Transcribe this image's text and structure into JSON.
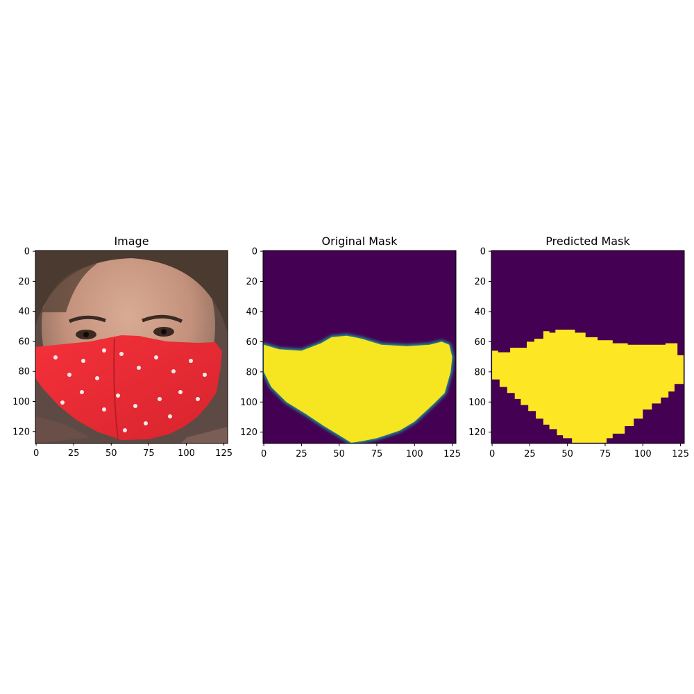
{
  "figure": {
    "background": "#ffffff"
  },
  "chart_data": [
    {
      "type": "heatmap",
      "title": "Image",
      "content": "rgb photo: face wearing red cloth mask with white heart pattern",
      "xlim": [
        0,
        127
      ],
      "ylim": [
        127,
        0
      ],
      "xticks": [
        0,
        25,
        50,
        75,
        100,
        125
      ],
      "yticks": [
        0,
        20,
        40,
        60,
        80,
        100,
        120
      ],
      "colors": {
        "mask": "#ee2b35",
        "skin": "#c99a85",
        "hair": "#4a3a30",
        "scarf": "#5e4a44"
      }
    },
    {
      "type": "heatmap",
      "title": "Original Mask",
      "colormap": "viridis",
      "xlim": [
        0,
        127
      ],
      "ylim": [
        127,
        0
      ],
      "xticks": [
        0,
        25,
        50,
        75,
        100,
        125
      ],
      "yticks": [
        0,
        20,
        40,
        60,
        80,
        100,
        120
      ],
      "colors": {
        "background": "#440154",
        "mask": "#f6e521",
        "edge": "#21918c"
      },
      "outline": [
        [
          0,
          62
        ],
        [
          10,
          65
        ],
        [
          25,
          66
        ],
        [
          38,
          61
        ],
        [
          45,
          57
        ],
        [
          55,
          56
        ],
        [
          65,
          58
        ],
        [
          78,
          62
        ],
        [
          95,
          63
        ],
        [
          110,
          62
        ],
        [
          118,
          60
        ],
        [
          123,
          62
        ],
        [
          125,
          70
        ],
        [
          124,
          80
        ],
        [
          120,
          94
        ],
        [
          113,
          101
        ],
        [
          100,
          113
        ],
        [
          90,
          119
        ],
        [
          75,
          124
        ],
        [
          65,
          126
        ],
        [
          58,
          127
        ],
        [
          50,
          122
        ],
        [
          40,
          116
        ],
        [
          28,
          108
        ],
        [
          15,
          100
        ],
        [
          5,
          90
        ],
        [
          0,
          80
        ]
      ]
    },
    {
      "type": "heatmap",
      "title": "Predicted Mask",
      "colormap": "viridis",
      "xlim": [
        0,
        127
      ],
      "ylim": [
        127,
        0
      ],
      "xticks": [
        0,
        25,
        50,
        75,
        100,
        125
      ],
      "yticks": [
        0,
        20,
        40,
        60,
        80,
        100,
        120
      ],
      "colors": {
        "background": "#440154",
        "mask": "#fde725"
      },
      "outline": [
        [
          0,
          66
        ],
        [
          4,
          66
        ],
        [
          4,
          67
        ],
        [
          12,
          67
        ],
        [
          12,
          64
        ],
        [
          23,
          64
        ],
        [
          23,
          60
        ],
        [
          28,
          60
        ],
        [
          28,
          58
        ],
        [
          34,
          58
        ],
        [
          34,
          53
        ],
        [
          38,
          53
        ],
        [
          38,
          54
        ],
        [
          42,
          54
        ],
        [
          42,
          52
        ],
        [
          55,
          52
        ],
        [
          55,
          54
        ],
        [
          62,
          54
        ],
        [
          62,
          57
        ],
        [
          70,
          57
        ],
        [
          70,
          59
        ],
        [
          80,
          59
        ],
        [
          80,
          61
        ],
        [
          90,
          61
        ],
        [
          90,
          62
        ],
        [
          115,
          62
        ],
        [
          115,
          61
        ],
        [
          123,
          61
        ],
        [
          123,
          69
        ],
        [
          127,
          69
        ],
        [
          127,
          88
        ],
        [
          121,
          88
        ],
        [
          121,
          93
        ],
        [
          117,
          93
        ],
        [
          117,
          97
        ],
        [
          112,
          97
        ],
        [
          112,
          101
        ],
        [
          106,
          101
        ],
        [
          106,
          105
        ],
        [
          100,
          105
        ],
        [
          100,
          111
        ],
        [
          94,
          111
        ],
        [
          94,
          116
        ],
        [
          88,
          116
        ],
        [
          88,
          121
        ],
        [
          80,
          121
        ],
        [
          80,
          124
        ],
        [
          76,
          124
        ],
        [
          76,
          127
        ],
        [
          53,
          127
        ],
        [
          53,
          124
        ],
        [
          47,
          124
        ],
        [
          47,
          122
        ],
        [
          43,
          122
        ],
        [
          43,
          118
        ],
        [
          38,
          118
        ],
        [
          38,
          115
        ],
        [
          34,
          115
        ],
        [
          34,
          111
        ],
        [
          29,
          111
        ],
        [
          29,
          106
        ],
        [
          24,
          106
        ],
        [
          24,
          102
        ],
        [
          19,
          102
        ],
        [
          19,
          98
        ],
        [
          15,
          98
        ],
        [
          15,
          94
        ],
        [
          10,
          94
        ],
        [
          10,
          90
        ],
        [
          5,
          90
        ],
        [
          5,
          85
        ],
        [
          0,
          85
        ]
      ]
    }
  ]
}
